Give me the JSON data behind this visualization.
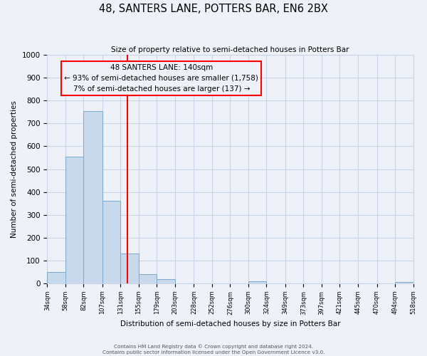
{
  "title": "48, SANTERS LANE, POTTERS BAR, EN6 2BX",
  "subtitle": "Size of property relative to semi-detached houses in Potters Bar",
  "xlabel": "Distribution of semi-detached houses by size in Potters Bar",
  "ylabel": "Number of semi-detached properties",
  "bar_edges": [
    34,
    58,
    82,
    107,
    131,
    155,
    179,
    203,
    228,
    252,
    276,
    300,
    324,
    349,
    373,
    397,
    421,
    445,
    470,
    494,
    518
  ],
  "bar_heights": [
    50,
    555,
    755,
    360,
    130,
    40,
    18,
    0,
    0,
    0,
    0,
    8,
    0,
    0,
    0,
    0,
    0,
    0,
    0,
    5
  ],
  "bar_color": "#c9d9ec",
  "bar_edge_color": "#7aaacf",
  "vline_x": 140,
  "vline_color": "red",
  "annotation_title": "48 SANTERS LANE: 140sqm",
  "annotation_line1": "← 93% of semi-detached houses are smaller (1,758)",
  "annotation_line2": "7% of semi-detached houses are larger (137) →",
  "annotation_box_color": "red",
  "ylim": [
    0,
    1000
  ],
  "yticks": [
    0,
    100,
    200,
    300,
    400,
    500,
    600,
    700,
    800,
    900,
    1000
  ],
  "tick_labels": [
    "34sqm",
    "58sqm",
    "82sqm",
    "107sqm",
    "131sqm",
    "155sqm",
    "179sqm",
    "203sqm",
    "228sqm",
    "252sqm",
    "276sqm",
    "300sqm",
    "324sqm",
    "349sqm",
    "373sqm",
    "397sqm",
    "421sqm",
    "445sqm",
    "470sqm",
    "494sqm",
    "518sqm"
  ],
  "footer1": "Contains HM Land Registry data © Crown copyright and database right 2024.",
  "footer2": "Contains public sector information licensed under the Open Government Licence v3.0.",
  "bg_color": "#eef2f8",
  "grid_color": "#c8d4e8"
}
